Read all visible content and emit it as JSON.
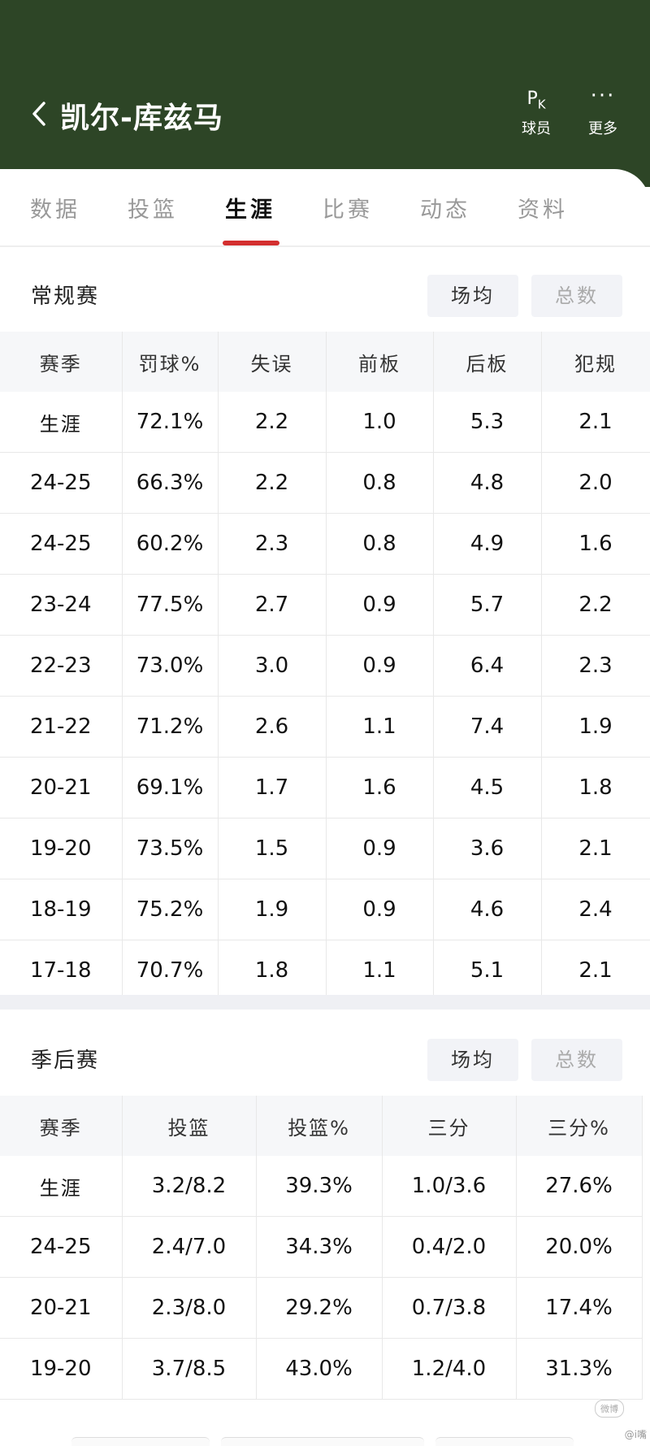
{
  "header": {
    "title": "凯尔-库兹马",
    "pk_glyph": "P",
    "pk_sub": "K",
    "pk_label": "球员",
    "more_glyph": "···",
    "more_label": "更多"
  },
  "tabs": [
    {
      "label": "数据"
    },
    {
      "label": "投篮"
    },
    {
      "label": "生涯"
    },
    {
      "label": "比赛"
    },
    {
      "label": "动态"
    },
    {
      "label": "资料"
    }
  ],
  "active_tab": "生涯",
  "regular": {
    "title": "常规赛",
    "toggle_per_game": "场均",
    "toggle_total": "总数",
    "columns": [
      "赛季",
      "罚球%",
      "失误",
      "前板",
      "后板",
      "犯规"
    ],
    "rows": [
      [
        "生涯",
        "72.1%",
        "2.2",
        "1.0",
        "5.3",
        "2.1"
      ],
      [
        "24-25",
        "66.3%",
        "2.2",
        "0.8",
        "4.8",
        "2.0"
      ],
      [
        "24-25",
        "60.2%",
        "2.3",
        "0.8",
        "4.9",
        "1.6"
      ],
      [
        "23-24",
        "77.5%",
        "2.7",
        "0.9",
        "5.7",
        "2.2"
      ],
      [
        "22-23",
        "73.0%",
        "3.0",
        "0.9",
        "6.4",
        "2.3"
      ],
      [
        "21-22",
        "71.2%",
        "2.6",
        "1.1",
        "7.4",
        "1.9"
      ],
      [
        "20-21",
        "69.1%",
        "1.7",
        "1.6",
        "4.5",
        "1.8"
      ],
      [
        "19-20",
        "73.5%",
        "1.5",
        "0.9",
        "3.6",
        "2.1"
      ],
      [
        "18-19",
        "75.2%",
        "1.9",
        "0.9",
        "4.6",
        "2.4"
      ],
      [
        "17-18",
        "70.7%",
        "1.8",
        "1.1",
        "5.1",
        "2.1"
      ]
    ]
  },
  "playoffs": {
    "title": "季后赛",
    "toggle_per_game": "场均",
    "toggle_total": "总数",
    "columns": [
      "赛季",
      "投篮",
      "投篮%",
      "三分",
      "三分%"
    ],
    "rows": [
      [
        "生涯",
        "3.2/8.2",
        "39.3%",
        "1.0/3.6",
        "27.6%"
      ],
      [
        "24-25",
        "2.4/7.0",
        "34.3%",
        "0.4/2.0",
        "20.0%"
      ],
      [
        "20-21",
        "2.3/8.0",
        "29.2%",
        "0.7/3.8",
        "17.4%"
      ],
      [
        "19-20",
        "3.7/8.5",
        "43.0%",
        "1.2/4.0",
        "31.3%"
      ]
    ]
  },
  "watermark": "微博",
  "credit": "@i嘴"
}
